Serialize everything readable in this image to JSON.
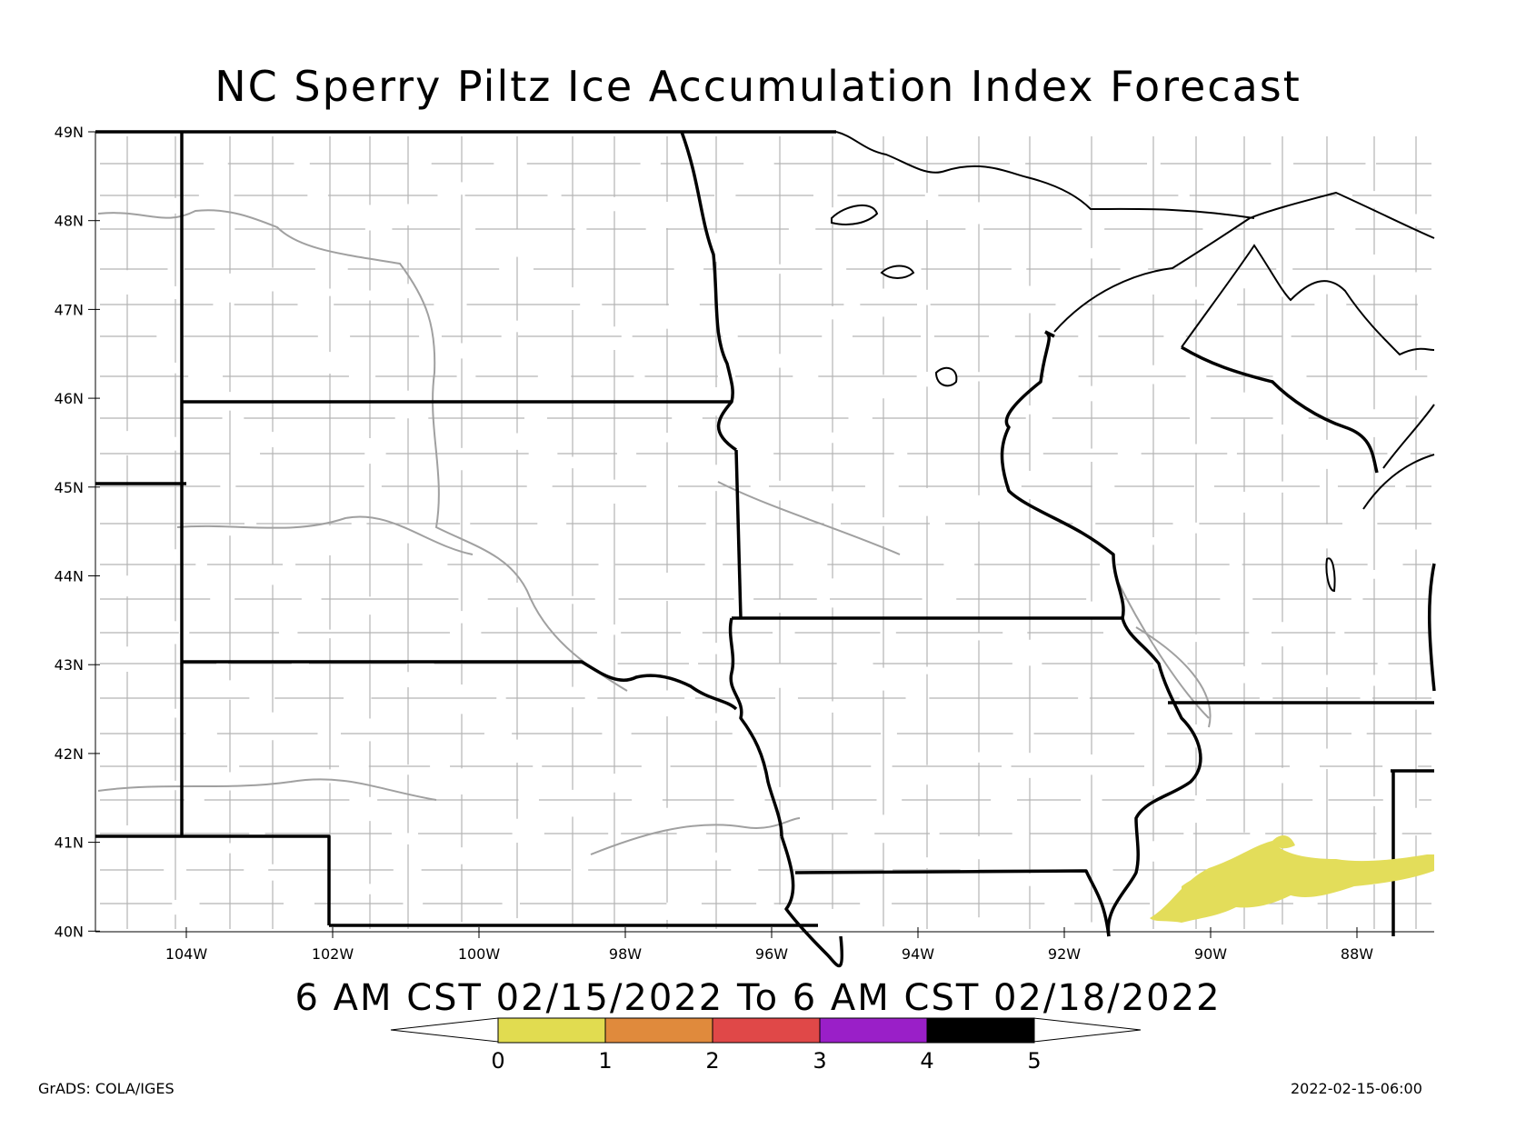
{
  "map": {
    "title": "NC Sperry Piltz Ice Accumulation Index Forecast",
    "valid_period": "6 AM CST 02/15/2022 To 6 AM CST 02/18/2022",
    "credit": "GrADS: COLA/IGES",
    "timestamp": "2022-02-15-06:00",
    "lat_labels": [
      "49N",
      "48N",
      "47N",
      "46N",
      "45N",
      "44N",
      "43N",
      "42N",
      "41N",
      "40N"
    ],
    "lon_labels": [
      "104W",
      "102W",
      "100W",
      "98W",
      "96W",
      "94W",
      "92W",
      "90W",
      "88W"
    ],
    "legend": {
      "colors": [
        "#e1dc50",
        "#e08a3c",
        "#e04848",
        "#9a1fc8",
        "#000000"
      ],
      "labels": [
        "0",
        "1",
        "2",
        "3",
        "4",
        "5"
      ]
    },
    "shading": {
      "color": "#e3dd5a",
      "region": "northern Illinois, index 0-1"
    }
  }
}
